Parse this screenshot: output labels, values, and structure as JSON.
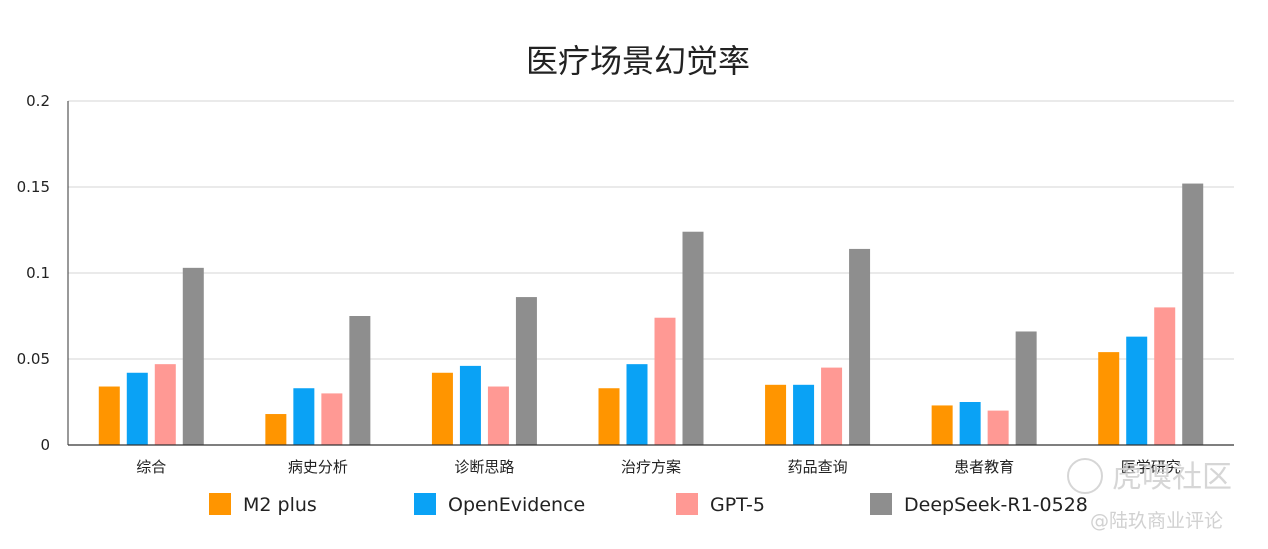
{
  "chart_data": {
    "type": "bar",
    "title": "医疗场景幻觉率",
    "categories": [
      "综合",
      "病史分析",
      "诊断思路",
      "治疗方案",
      "药品查询",
      "患者教育",
      "医学研究"
    ],
    "series": [
      {
        "name": "M2 plus",
        "color": "#ff9500",
        "values": [
          0.034,
          0.018,
          0.042,
          0.033,
          0.035,
          0.023,
          0.054
        ]
      },
      {
        "name": "OpenEvidence",
        "color": "#0aa2f5",
        "values": [
          0.042,
          0.033,
          0.046,
          0.047,
          0.035,
          0.025,
          0.063
        ]
      },
      {
        "name": "GPT-5",
        "color": "#ff9994",
        "values": [
          0.047,
          0.03,
          0.034,
          0.074,
          0.045,
          0.02,
          0.08
        ]
      },
      {
        "name": "DeepSeek-R1-0528",
        "color": "#8e8e8e",
        "values": [
          0.103,
          0.075,
          0.086,
          0.124,
          0.114,
          0.066,
          0.152
        ]
      }
    ],
    "yticks": [
      "0",
      "0.05",
      "0.1",
      "0.15",
      "0.2"
    ],
    "ylim": [
      0,
      0.2
    ],
    "grid": true,
    "legend_position": "bottom"
  },
  "watermark": {
    "brand": "虎嗅社区",
    "author": "@陆玖商业评论"
  }
}
